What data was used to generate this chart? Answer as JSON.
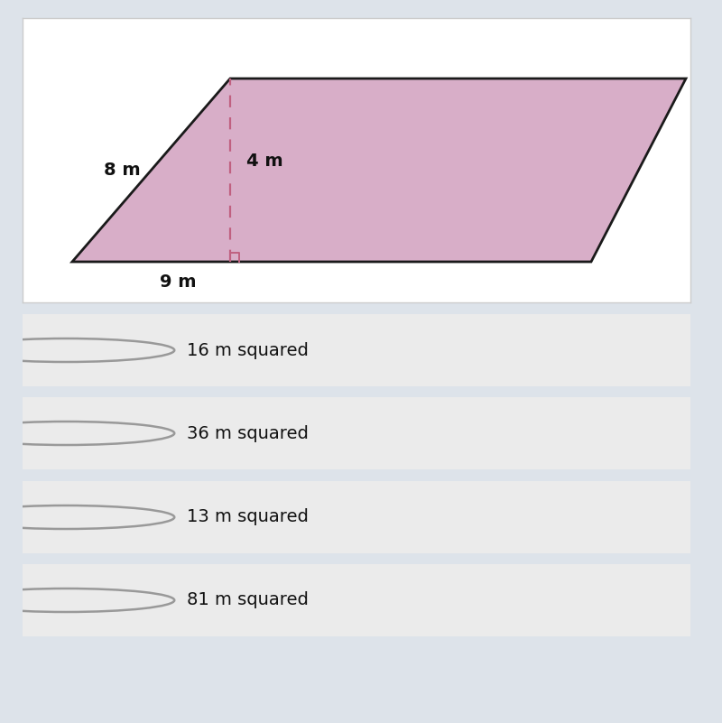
{
  "bg_color": "#dde3ea",
  "panel_bg": "#ffffff",
  "panel_border": "#cccccc",
  "option_bg": "#ebebeb",
  "option_border": "#d0d0d0",
  "para_fill": "#d8aec8",
  "para_edge": "#1a1a1a",
  "dash_color": "#c06080",
  "label_color": "#111111",
  "option_text_color": "#111111",
  "radio_color": "#999999",
  "labels": {
    "side": "8 m",
    "height": "4 m",
    "base": "9 m"
  },
  "options": [
    "16 m squared",
    "36 m squared",
    "13 m squared",
    "81 m squared"
  ],
  "label_fontsize": 13,
  "option_fontsize": 14
}
